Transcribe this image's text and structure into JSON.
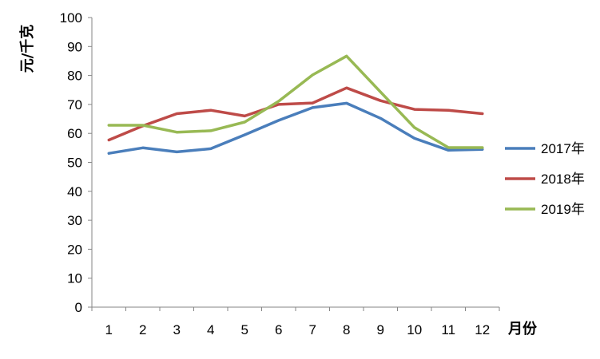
{
  "chart_data": {
    "type": "line",
    "title": "",
    "xlabel": "月份",
    "ylabel": "元/千克",
    "categories": [
      "1",
      "2",
      "3",
      "4",
      "5",
      "6",
      "7",
      "8",
      "9",
      "10",
      "11",
      "12"
    ],
    "ylim": [
      0,
      100
    ],
    "yticks": [
      "0",
      "10",
      "20",
      "30",
      "40",
      "50",
      "60",
      "70",
      "80",
      "90",
      "100"
    ],
    "grid": false,
    "legend_position": "right",
    "series": [
      {
        "name": "2017年",
        "color": "#4a7ebb",
        "values": [
          53.1,
          55.0,
          53.6,
          54.7,
          59.5,
          64.5,
          68.9,
          70.4,
          65.2,
          58.3,
          54.2,
          54.5
        ]
      },
      {
        "name": "2018年",
        "color": "#be4b48",
        "values": [
          57.7,
          62.6,
          66.8,
          68.0,
          66.0,
          70.0,
          70.5,
          75.7,
          71.3,
          68.3,
          68.0,
          66.8
        ]
      },
      {
        "name": "2019年",
        "color": "#98b954",
        "values": [
          62.8,
          62.8,
          60.4,
          60.9,
          63.9,
          71.1,
          80.2,
          86.7,
          74.3,
          62.0,
          55.1,
          55.1
        ]
      }
    ]
  }
}
